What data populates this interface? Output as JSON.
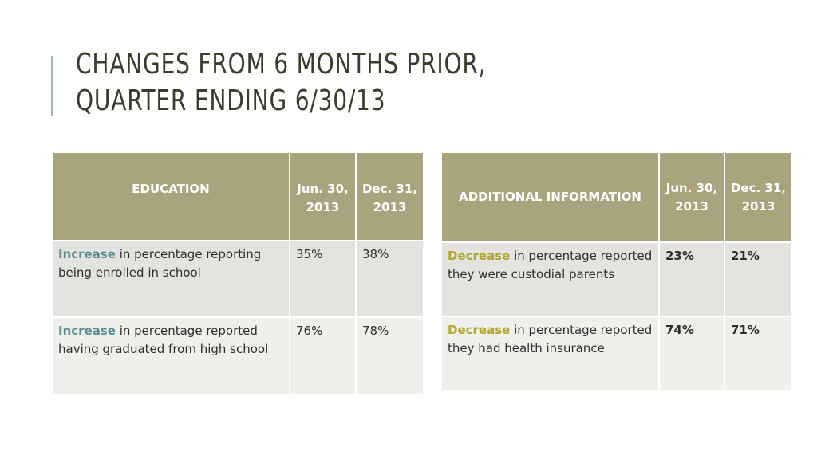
{
  "title": {
    "line1": "CHANGES FROM 6 MONTHS PRIOR,",
    "line2": "QUARTER ENDING 6/30/13"
  },
  "education_table": {
    "header": {
      "label": "EDUCATION",
      "col1": "Jun. 30, 2013",
      "col2": "Dec. 31, 2013"
    },
    "rows": [
      {
        "keyword": "Increase",
        "text": " in percentage reporting being enrolled in school",
        "jun": "35%",
        "dec": "38%"
      },
      {
        "keyword": "Increase",
        "text": " in percentage reported having graduated from high school",
        "jun": "76%",
        "dec": "78%"
      }
    ]
  },
  "additional_table": {
    "header": {
      "label": "ADDITIONAL INFORMATION",
      "col1": "Jun. 30, 2013",
      "col2": "Dec. 31, 2013"
    },
    "rows": [
      {
        "keyword": "Decrease",
        "text": " in percentage reported they were custodial parents",
        "jun": "23%",
        "dec": "21%"
      },
      {
        "keyword": "Decrease",
        "text": " in percentage reported they had health insurance",
        "jun": "74%",
        "dec": "71%"
      }
    ]
  },
  "colors": {
    "header_bg": "#a9a47d",
    "increase": "#5a8f95",
    "decrease": "#b4a82c",
    "title": "#3d3b2c",
    "accent_bar": "#9fb8ae"
  }
}
